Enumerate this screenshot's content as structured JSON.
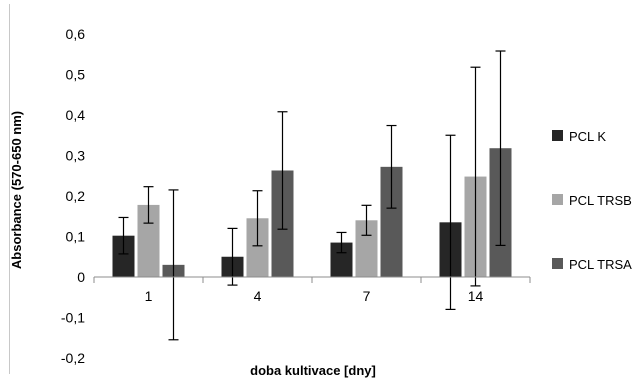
{
  "chart_data": {
    "type": "bar",
    "xlabel": "doba kultivace [dny]",
    "ylabel": "Absorbance (570-650 nm)",
    "categories": [
      "1",
      "4",
      "7",
      "14"
    ],
    "ylim": [
      -0.2,
      0.6
    ],
    "yticks": [
      0.6,
      0.5,
      0.4,
      0.3,
      0.2,
      0.1,
      0,
      -0.1,
      -0.2
    ],
    "ytick_labels": [
      "0,6",
      "0,5",
      "0,4",
      "0,3",
      "0,2",
      "0,1",
      "0",
      "-0,1",
      "-0,2"
    ],
    "grid": false,
    "legend_position": "right",
    "series": [
      {
        "name": "PCL K",
        "color": "#262626",
        "values": [
          0.102,
          0.05,
          0.085,
          0.135
        ],
        "errors": [
          0.045,
          0.07,
          0.025,
          0.215
        ]
      },
      {
        "name": "PCL TRSB",
        "color": "#a6a6a6",
        "values": [
          0.178,
          0.145,
          0.14,
          0.248
        ],
        "errors": [
          0.045,
          0.068,
          0.037,
          0.27
        ]
      },
      {
        "name": "PCL TRSA",
        "color": "#595959",
        "values": [
          0.03,
          0.263,
          0.272,
          0.318
        ],
        "errors": [
          0.185,
          0.145,
          0.102,
          0.24
        ]
      }
    ]
  }
}
